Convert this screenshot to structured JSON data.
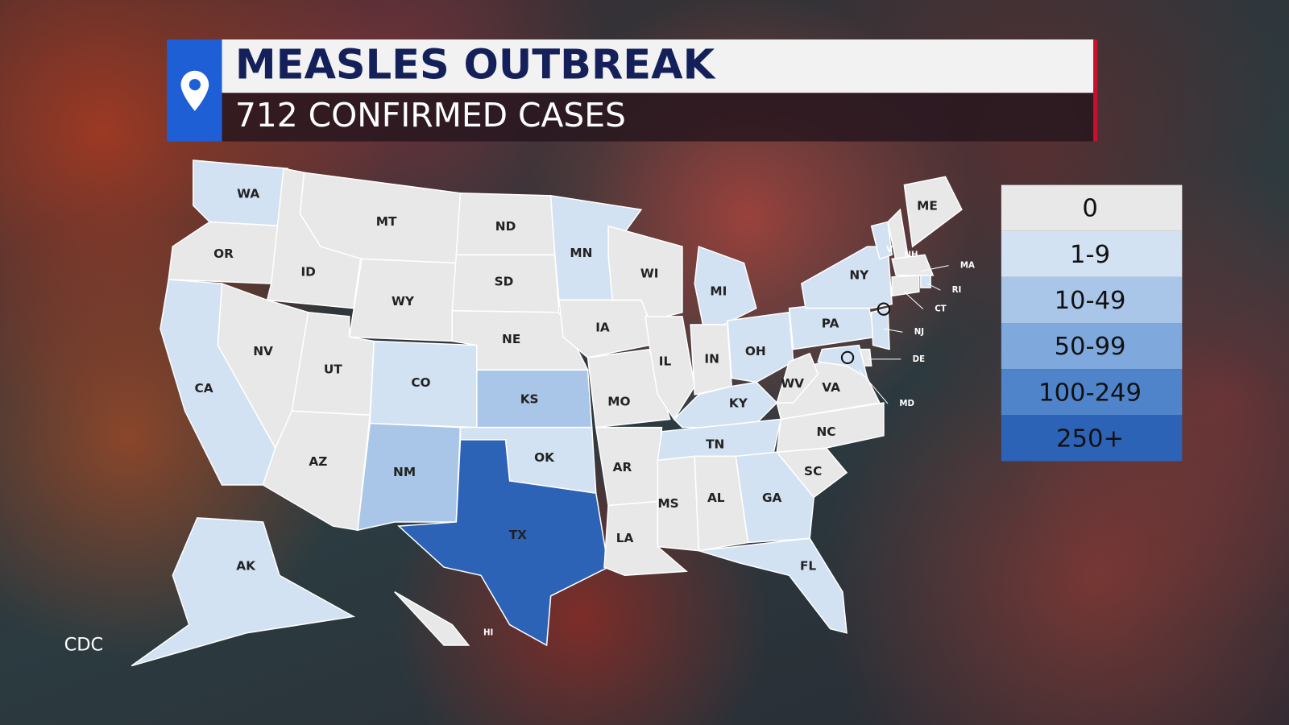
{
  "header": {
    "title": "MEASLES OUTBREAK",
    "subtitle": "712 CONFIRMED CASES"
  },
  "source": "CDC",
  "legend": [
    {
      "label": "0",
      "color": "#e8e8e8"
    },
    {
      "label": "1-9",
      "color": "#d2e2f3"
    },
    {
      "label": "10-49",
      "color": "#a9c6e8"
    },
    {
      "label": "50-99",
      "color": "#7fa8dc"
    },
    {
      "label": "100-249",
      "color": "#4f84ca"
    },
    {
      "label": "250+",
      "color": "#2c63b7"
    }
  ],
  "states": [
    {
      "label": "WA",
      "color": "#d2e2f3"
    },
    {
      "label": "OR",
      "color": "#e8e8e8"
    },
    {
      "label": "CA",
      "color": "#d2e2f3"
    },
    {
      "label": "ID",
      "color": "#e8e8e8"
    },
    {
      "label": "NV",
      "color": "#e8e8e8"
    },
    {
      "label": "MT",
      "color": "#e8e8e8"
    },
    {
      "label": "WY",
      "color": "#e8e8e8"
    },
    {
      "label": "UT",
      "color": "#e8e8e8"
    },
    {
      "label": "AZ",
      "color": "#e8e8e8"
    },
    {
      "label": "CO",
      "color": "#d2e2f3"
    },
    {
      "label": "NM",
      "color": "#a9c6e8"
    },
    {
      "label": "ND",
      "color": "#e8e8e8"
    },
    {
      "label": "SD",
      "color": "#e8e8e8"
    },
    {
      "label": "NE",
      "color": "#e8e8e8"
    },
    {
      "label": "KS",
      "color": "#a9c6e8"
    },
    {
      "label": "OK",
      "color": "#d2e2f3"
    },
    {
      "label": "TX",
      "color": "#2c63b7"
    },
    {
      "label": "MN",
      "color": "#d2e2f3"
    },
    {
      "label": "IA",
      "color": "#e8e8e8"
    },
    {
      "label": "MO",
      "color": "#e8e8e8"
    },
    {
      "label": "AR",
      "color": "#e8e8e8"
    },
    {
      "label": "LA",
      "color": "#e8e8e8"
    },
    {
      "label": "WI",
      "color": "#e8e8e8"
    },
    {
      "label": "IL",
      "color": "#e8e8e8"
    },
    {
      "label": "MI",
      "color": "#d2e2f3"
    },
    {
      "label": "IN",
      "color": "#e8e8e8"
    },
    {
      "label": "OH",
      "color": "#d2e2f3"
    },
    {
      "label": "KY",
      "color": "#d2e2f3"
    },
    {
      "label": "TN",
      "color": "#d2e2f3"
    },
    {
      "label": "MS",
      "color": "#e8e8e8"
    },
    {
      "label": "AL",
      "color": "#e8e8e8"
    },
    {
      "label": "GA",
      "color": "#d2e2f3"
    },
    {
      "label": "FL",
      "color": "#d2e2f3"
    },
    {
      "label": "SC",
      "color": "#e8e8e8"
    },
    {
      "label": "NC",
      "color": "#e8e8e8"
    },
    {
      "label": "VA",
      "color": "#e8e8e8"
    },
    {
      "label": "WV",
      "color": "#e8e8e8"
    },
    {
      "label": "PA",
      "color": "#d2e2f3"
    },
    {
      "label": "NY",
      "color": "#d2e2f3"
    },
    {
      "label": "VT",
      "color": "#d2e2f3"
    },
    {
      "label": "NH",
      "color": "#e8e8e8"
    },
    {
      "label": "ME",
      "color": "#e8e8e8"
    },
    {
      "label": "MA",
      "color": "#e8e8e8"
    },
    {
      "label": "RI",
      "color": "#d2e2f3"
    },
    {
      "label": "CT",
      "color": "#e8e8e8"
    },
    {
      "label": "NJ",
      "color": "#d2e2f3"
    },
    {
      "label": "DE",
      "color": "#e8e8e8"
    },
    {
      "label": "MD",
      "color": "#d2e2f3"
    },
    {
      "label": "AK",
      "color": "#d2e2f3"
    },
    {
      "label": "HI",
      "color": "#e8e8e8"
    }
  ]
}
